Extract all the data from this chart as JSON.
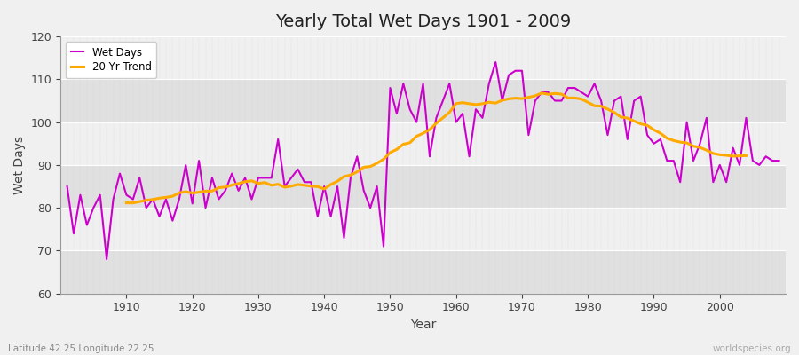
{
  "title": "Yearly Total Wet Days 1901 - 2009",
  "xlabel": "Year",
  "ylabel": "Wet Days",
  "footnote_left": "Latitude 42.25 Longitude 22.25",
  "footnote_right": "worldspecies.org",
  "ylim": [
    60,
    120
  ],
  "line_color": "#cc00cc",
  "trend_color": "#ffaa00",
  "bg_color": "#f0f0f0",
  "band_color_dark": "#e0e0e0",
  "band_color_light": "#f0f0f0",
  "grid_color": "#ffffff",
  "years": [
    1901,
    1902,
    1903,
    1904,
    1905,
    1906,
    1907,
    1908,
    1909,
    1910,
    1911,
    1912,
    1913,
    1914,
    1915,
    1916,
    1917,
    1918,
    1919,
    1920,
    1921,
    1922,
    1923,
    1924,
    1925,
    1926,
    1927,
    1928,
    1929,
    1930,
    1931,
    1932,
    1933,
    1934,
    1935,
    1936,
    1937,
    1938,
    1939,
    1940,
    1941,
    1942,
    1943,
    1944,
    1945,
    1946,
    1947,
    1948,
    1949,
    1950,
    1951,
    1952,
    1953,
    1954,
    1955,
    1956,
    1957,
    1958,
    1959,
    1960,
    1961,
    1962,
    1963,
    1964,
    1965,
    1966,
    1967,
    1968,
    1969,
    1970,
    1971,
    1972,
    1973,
    1974,
    1975,
    1976,
    1977,
    1978,
    1979,
    1980,
    1981,
    1982,
    1983,
    1984,
    1985,
    1986,
    1987,
    1988,
    1989,
    1990,
    1991,
    1992,
    1993,
    1994,
    1995,
    1996,
    1997,
    1998,
    1999,
    2000,
    2001,
    2002,
    2003,
    2004,
    2005,
    2006,
    2007,
    2008,
    2009
  ],
  "wet_days": [
    85,
    74,
    83,
    76,
    80,
    83,
    68,
    82,
    88,
    83,
    82,
    87,
    80,
    82,
    78,
    82,
    77,
    82,
    90,
    81,
    91,
    80,
    87,
    82,
    84,
    88,
    84,
    87,
    82,
    87,
    87,
    87,
    96,
    85,
    87,
    89,
    86,
    86,
    78,
    85,
    78,
    85,
    73,
    87,
    92,
    84,
    80,
    85,
    71,
    108,
    102,
    109,
    103,
    100,
    109,
    92,
    101,
    105,
    109,
    100,
    102,
    92,
    103,
    101,
    109,
    114,
    105,
    111,
    112,
    112,
    97,
    105,
    107,
    107,
    105,
    105,
    108,
    108,
    107,
    106,
    109,
    105,
    97,
    105,
    106,
    96,
    105,
    106,
    97,
    95,
    96,
    91,
    91,
    86,
    100,
    91,
    95,
    101,
    86,
    90,
    86,
    94,
    90,
    101,
    91,
    90,
    92,
    91,
    91
  ]
}
